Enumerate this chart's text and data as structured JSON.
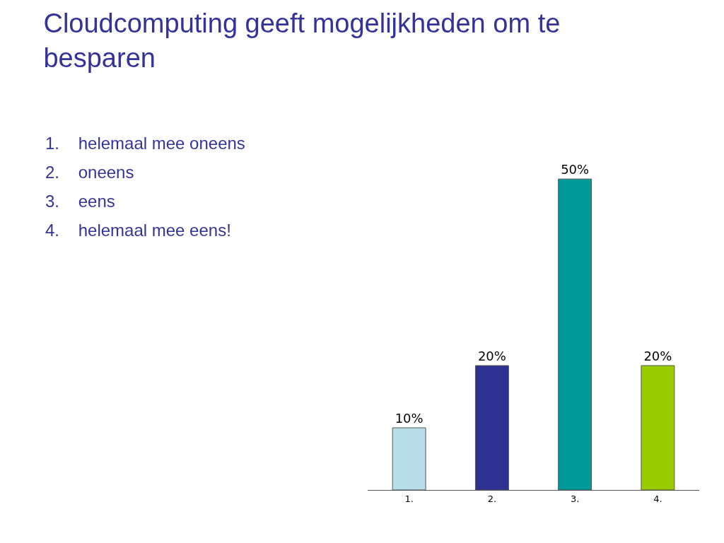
{
  "chart_data": {
    "type": "bar",
    "title": "Cloudcomputing geeft mogelijkheden om te besparen",
    "categories": [
      "1.",
      "2.",
      "3.",
      "4."
    ],
    "values": [
      10,
      20,
      50,
      20
    ],
    "colors": [
      "#b7dde8",
      "#2e3192",
      "#009999",
      "#99cc00"
    ],
    "data_labels": true,
    "value_labels": [
      "10%",
      "20%",
      "50%",
      "20%"
    ],
    "annotations": [
      "1.    helemaal mee oneens",
      "2.    oneens",
      "3.    eens",
      "4.    helemaal mee eens!"
    ],
    "grid": false,
    "legend": false
  }
}
